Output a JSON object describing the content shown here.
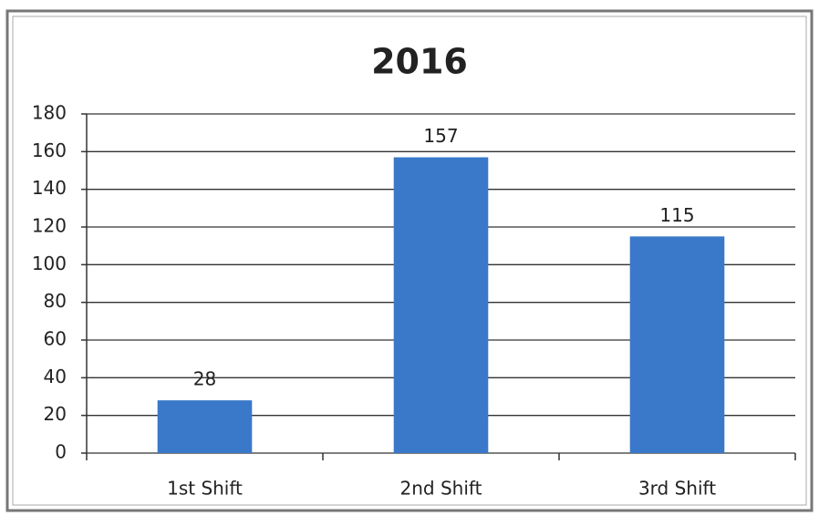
{
  "chart_data": {
    "type": "bar",
    "title": "2016",
    "categories": [
      "1st Shift",
      "2nd Shift",
      "3rd Shift"
    ],
    "values": [
      28,
      157,
      115
    ],
    "color": "#3a78c9",
    "ylim": [
      0,
      180
    ],
    "yticks": [
      0,
      20,
      40,
      60,
      80,
      100,
      120,
      140,
      160,
      180
    ],
    "grid": true
  }
}
